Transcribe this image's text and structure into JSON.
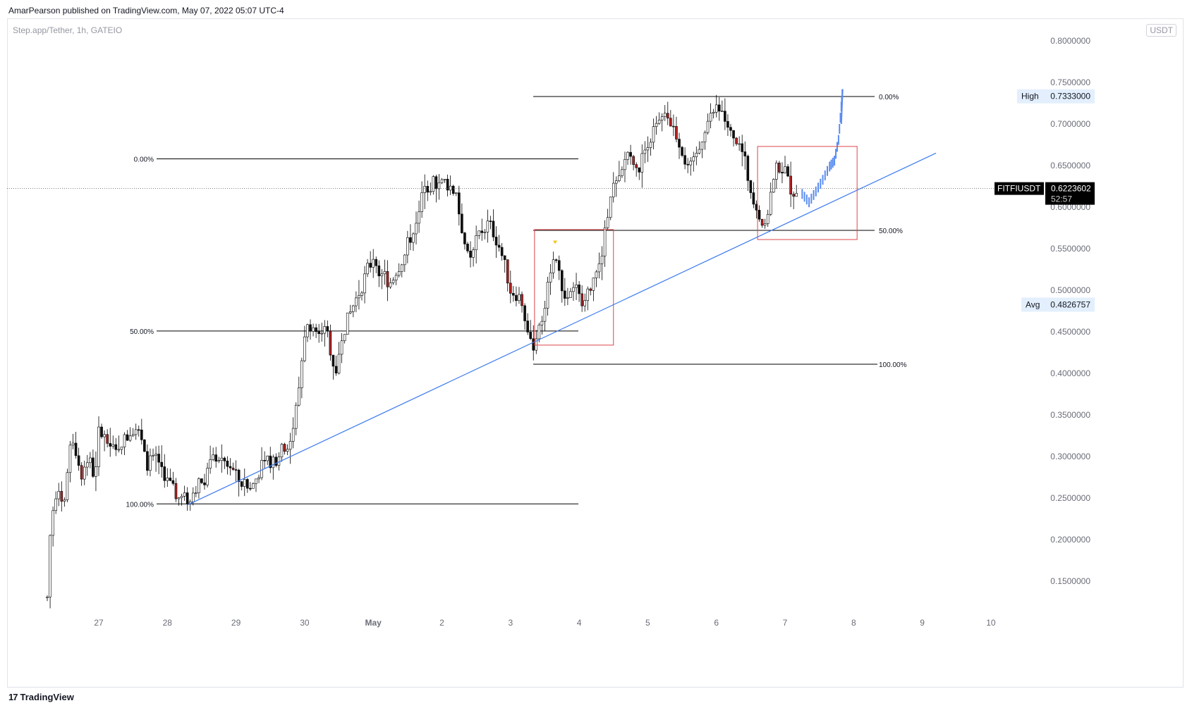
{
  "header": {
    "published": "AmarPearson published on TradingView.com, May 07, 2022 05:07 UTC-4",
    "symbol": "Step.app/Tether, 1h, GATEIO",
    "currency": "USDT"
  },
  "footer": {
    "brand": "TradingView",
    "logo_icon": "tradingview-logo-icon"
  },
  "colors": {
    "up": "#6b6b6b",
    "down": "#000000",
    "bear_body": "#b22222",
    "trend": "#3d7bf0",
    "box": "#e0454a",
    "projection": "#5b8def"
  },
  "chart_data": {
    "type": "candlestick",
    "symbol": "FITFIUSDT",
    "y_axis": {
      "ticks": [
        "0.8000000",
        "0.7500000",
        "0.7000000",
        "0.6500000",
        "0.6000000",
        "0.5500000",
        "0.5000000",
        "0.4500000",
        "0.4000000",
        "0.3500000",
        "0.3000000",
        "0.2500000",
        "0.2000000",
        "0.1500000"
      ],
      "range": [
        0.12,
        0.82
      ]
    },
    "x_axis": {
      "ticks": [
        "27",
        "28",
        "29",
        "30",
        "May",
        "2",
        "3",
        "4",
        "5",
        "6",
        "7",
        "8",
        "9",
        "10"
      ]
    },
    "price_labels": {
      "high_label": "High",
      "high_value": "0.7333000",
      "last_symbol": "FITFIUSDT",
      "last_value": "0.6223602",
      "countdown": "52:57",
      "avg_label": "Avg",
      "avg_value": "0.4826757"
    },
    "fib_left": [
      {
        "label": "0.00%",
        "price": 0.658
      },
      {
        "label": "50.00%",
        "price": 0.451
      },
      {
        "label": "100.00%",
        "price": 0.243
      }
    ],
    "fib_right": [
      {
        "label": "0.00%",
        "price": 0.733
      },
      {
        "label": "50.00%",
        "price": 0.572
      },
      {
        "label": "100.00%",
        "price": 0.411
      }
    ],
    "price_path": [
      [
        26.25,
        0.13
      ],
      [
        26.3,
        0.22
      ],
      [
        26.4,
        0.27
      ],
      [
        26.5,
        0.24
      ],
      [
        26.6,
        0.33
      ],
      [
        26.75,
        0.28
      ],
      [
        26.85,
        0.3
      ],
      [
        26.95,
        0.27
      ],
      [
        27.0,
        0.33
      ],
      [
        27.2,
        0.31
      ],
      [
        27.4,
        0.32
      ],
      [
        27.55,
        0.34
      ],
      [
        27.7,
        0.29
      ],
      [
        27.85,
        0.3
      ],
      [
        28.0,
        0.27
      ],
      [
        28.15,
        0.25
      ],
      [
        28.3,
        0.25
      ],
      [
        28.5,
        0.27
      ],
      [
        28.7,
        0.3
      ],
      [
        28.9,
        0.29
      ],
      [
        29.05,
        0.27
      ],
      [
        29.2,
        0.26
      ],
      [
        29.4,
        0.29
      ],
      [
        29.6,
        0.3
      ],
      [
        29.8,
        0.32
      ],
      [
        29.9,
        0.37
      ],
      [
        30.0,
        0.45
      ],
      [
        30.1,
        0.46
      ],
      [
        30.2,
        0.44
      ],
      [
        30.3,
        0.46
      ],
      [
        30.45,
        0.4
      ],
      [
        30.55,
        0.45
      ],
      [
        30.7,
        0.48
      ],
      [
        30.8,
        0.5
      ],
      [
        31.0,
        0.54
      ],
      [
        31.1,
        0.52
      ],
      [
        31.25,
        0.51
      ],
      [
        31.45,
        0.54
      ],
      [
        31.6,
        0.58
      ],
      [
        31.75,
        0.62
      ],
      [
        31.9,
        0.63
      ],
      [
        32.05,
        0.63
      ],
      [
        32.2,
        0.62
      ],
      [
        32.3,
        0.57
      ],
      [
        32.4,
        0.53
      ],
      [
        32.55,
        0.57
      ],
      [
        32.7,
        0.58
      ],
      [
        32.85,
        0.55
      ],
      [
        33.0,
        0.5
      ],
      [
        33.15,
        0.49
      ],
      [
        33.3,
        0.43
      ],
      [
        33.45,
        0.46
      ],
      [
        33.55,
        0.52
      ],
      [
        33.65,
        0.54
      ],
      [
        33.8,
        0.49
      ],
      [
        33.95,
        0.5
      ],
      [
        34.05,
        0.48
      ],
      [
        34.15,
        0.5
      ],
      [
        34.3,
        0.53
      ],
      [
        34.4,
        0.58
      ],
      [
        34.45,
        0.62
      ],
      [
        34.6,
        0.63
      ],
      [
        34.7,
        0.67
      ],
      [
        34.85,
        0.64
      ],
      [
        35.0,
        0.68
      ],
      [
        35.15,
        0.7
      ],
      [
        35.3,
        0.71
      ],
      [
        35.45,
        0.68
      ],
      [
        35.6,
        0.64
      ],
      [
        35.75,
        0.67
      ],
      [
        35.85,
        0.7
      ],
      [
        36.0,
        0.72
      ],
      [
        36.1,
        0.71
      ],
      [
        36.25,
        0.68
      ],
      [
        36.4,
        0.66
      ],
      [
        36.5,
        0.62
      ],
      [
        36.6,
        0.6
      ],
      [
        36.7,
        0.57
      ],
      [
        36.8,
        0.62
      ],
      [
        36.9,
        0.65
      ],
      [
        37.0,
        0.64
      ],
      [
        37.1,
        0.62
      ],
      [
        37.2,
        0.62
      ]
    ],
    "projection_path": [
      [
        37.25,
        0.615
      ],
      [
        37.35,
        0.605
      ],
      [
        37.45,
        0.618
      ],
      [
        37.55,
        0.632
      ],
      [
        37.65,
        0.648
      ],
      [
        37.72,
        0.655
      ],
      [
        37.78,
        0.68
      ],
      [
        37.82,
        0.72
      ],
      [
        37.84,
        0.742
      ]
    ],
    "annotations": {
      "trendline": {
        "from": [
          28.3,
          0.242
        ],
        "to": [
          39.2,
          0.665
        ]
      },
      "box_1": {
        "x0": 33.35,
        "x1": 34.5,
        "y0": 0.434,
        "y1": 0.573
      },
      "box_2": {
        "x0": 36.6,
        "x1": 38.05,
        "y0": 0.561,
        "y1": 0.673
      },
      "signal_marker": {
        "x": 33.65,
        "y": 0.553
      }
    }
  }
}
